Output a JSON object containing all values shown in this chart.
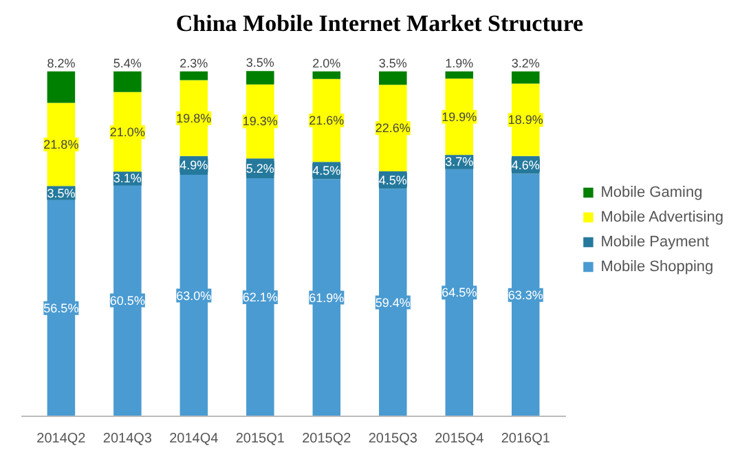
{
  "chart_data": {
    "type": "bar",
    "title": "China Mobile Internet Market Structure",
    "stacked": true,
    "legend": "right",
    "grid": false,
    "tick_labels": "x",
    "categories": [
      "2014Q2",
      "2014Q3",
      "2014Q4",
      "2015Q1",
      "2015Q2",
      "2015Q3",
      "2015Q4",
      "2016Q1"
    ],
    "series": [
      {
        "name": "Mobile Shopping",
        "color": "#4a9bd1",
        "values": [
          56.5,
          60.5,
          63.0,
          62.1,
          61.9,
          59.4,
          64.5,
          63.3
        ],
        "value_labels": [
          "56.5%",
          "60.5%",
          "63.0%",
          "62.1%",
          "61.9%",
          "59.4%",
          "64.5%",
          "63.3%"
        ]
      },
      {
        "name": "Mobile Payment",
        "color": "#25799c",
        "values": [
          3.5,
          3.1,
          4.9,
          5.2,
          4.5,
          4.5,
          3.7,
          4.6
        ],
        "value_labels": [
          "3.5%",
          "3.1%",
          "4.9%",
          "5.2%",
          "4.5%",
          "4.5%",
          "3.7%",
          "4.6%"
        ]
      },
      {
        "name": "Mobile Advertising",
        "color": "#ffff00",
        "values": [
          21.8,
          21.0,
          19.8,
          19.3,
          21.6,
          22.6,
          19.9,
          18.9
        ],
        "value_labels": [
          "21.8%",
          "21.0%",
          "19.8%",
          "19.3%",
          "21.6%",
          "22.6%",
          "19.9%",
          "18.9%"
        ]
      },
      {
        "name": "Mobile Gaming",
        "color": "#008000",
        "values": [
          8.2,
          5.4,
          2.3,
          3.5,
          2.0,
          3.5,
          1.9,
          3.2
        ],
        "value_labels": [
          "8.2%",
          "5.4%",
          "2.3%",
          "3.5%",
          "2.0%",
          "3.5%",
          "1.9%",
          "3.2%"
        ]
      }
    ]
  }
}
